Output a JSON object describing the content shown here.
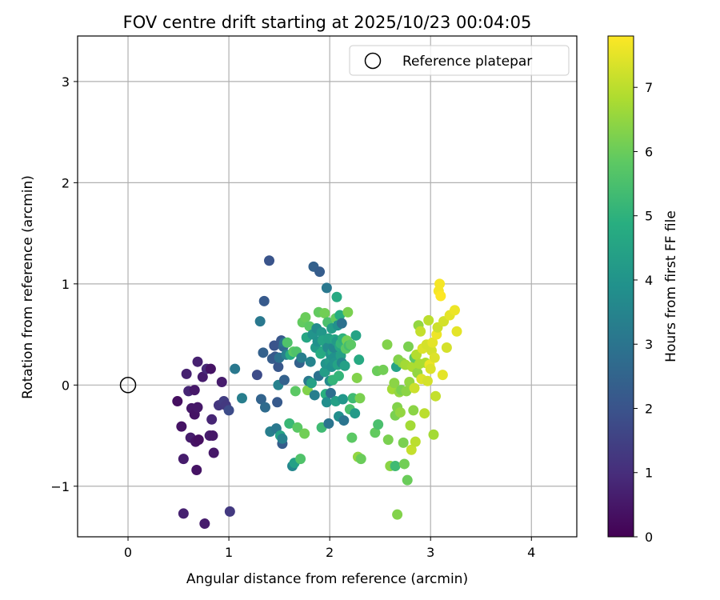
{
  "chart_data": {
    "type": "scatter",
    "title": "FOV centre drift starting at 2025/10/23 00:04:05",
    "xlabel": "Angular distance from reference (arcmin)",
    "ylabel": "Rotation from reference (arcmin)",
    "xlim": [
      -0.5,
      4.45
    ],
    "ylim": [
      -1.5,
      3.45
    ],
    "xticks": [
      0,
      1,
      2,
      3,
      4
    ],
    "yticks": [
      -1,
      0,
      1,
      2,
      3
    ],
    "xtick_labels": [
      "0",
      "1",
      "2",
      "3",
      "4"
    ],
    "ytick_labels": [
      "−1",
      "0",
      "1",
      "2",
      "3"
    ],
    "grid": true,
    "legend": {
      "placement": "top-right",
      "entries": [
        {
          "label": "Reference platepar",
          "marker": "open-circle",
          "x": 0,
          "y": 0
        }
      ]
    },
    "colorbar": {
      "label": "Hours from first FF file",
      "colormap": "viridis",
      "range": [
        0,
        7.8
      ],
      "ticks": [
        0,
        1,
        2,
        3,
        4,
        5,
        6,
        7
      ],
      "tick_labels": [
        "0",
        "1",
        "2",
        "3",
        "4",
        "5",
        "6",
        "7"
      ]
    },
    "points": [
      [
        0.49,
        -0.16,
        0.3
      ],
      [
        0.53,
        -0.41,
        0.4
      ],
      [
        0.55,
        -0.73,
        0.6
      ],
      [
        0.58,
        0.11,
        0.7
      ],
      [
        0.6,
        -0.06,
        0.8
      ],
      [
        0.62,
        -0.52,
        0.6
      ],
      [
        0.63,
        -0.23,
        0.5
      ],
      [
        0.66,
        -0.05,
        0.5
      ],
      [
        0.66,
        -0.29,
        0.4
      ],
      [
        0.67,
        -0.56,
        0.4
      ],
      [
        0.69,
        0.23,
        0.7
      ],
      [
        0.68,
        -0.84,
        0.4
      ],
      [
        0.69,
        -0.22,
        0.5
      ],
      [
        0.7,
        -0.54,
        0.3
      ],
      [
        0.74,
        0.08,
        0.6
      ],
      [
        0.78,
        0.16,
        0.9
      ],
      [
        0.81,
        -0.5,
        0.6
      ],
      [
        0.83,
        -0.34,
        0.8
      ],
      [
        0.82,
        0.16,
        0.4
      ],
      [
        0.85,
        -0.67,
        0.5
      ],
      [
        0.84,
        -0.5,
        0.5
      ],
      [
        0.9,
        -0.2,
        1.2
      ],
      [
        0.93,
        0.03,
        0.6
      ],
      [
        0.95,
        -0.16,
        1.4
      ],
      [
        0.97,
        -0.2,
        1.3
      ],
      [
        1.0,
        -0.25,
        1.8
      ],
      [
        1.06,
        0.16,
        3.1
      ],
      [
        0.55,
        -1.27,
        0.7
      ],
      [
        0.76,
        -1.37,
        0.6
      ],
      [
        1.01,
        -1.25,
        1.3
      ],
      [
        1.13,
        -0.13,
        3.3
      ],
      [
        1.28,
        0.1,
        1.8
      ],
      [
        1.31,
        0.63,
        3.1
      ],
      [
        1.32,
        -0.14,
        2.5
      ],
      [
        1.34,
        0.32,
        2.4
      ],
      [
        1.35,
        0.83,
        2.2
      ],
      [
        1.36,
        -0.22,
        2.7
      ],
      [
        1.4,
        1.23,
        2.0
      ],
      [
        1.41,
        -0.46,
        3.3
      ],
      [
        1.43,
        0.26,
        2.3
      ],
      [
        1.45,
        0.39,
        2.0
      ],
      [
        1.46,
        0.28,
        2.2
      ],
      [
        1.47,
        -0.43,
        3.1
      ],
      [
        1.48,
        -0.17,
        2.2
      ],
      [
        1.49,
        0.18,
        2.1
      ],
      [
        1.49,
        0.0,
        3.4
      ],
      [
        1.5,
        0.27,
        2.9
      ],
      [
        1.51,
        -0.5,
        4.5
      ],
      [
        1.52,
        0.44,
        2.1
      ],
      [
        1.53,
        -0.58,
        2.3
      ],
      [
        1.53,
        -0.53,
        3.4
      ],
      [
        1.54,
        0.38,
        2.6
      ],
      [
        1.55,
        0.05,
        2.4
      ],
      [
        1.55,
        0.42,
        3.0
      ],
      [
        1.57,
        0.3,
        3.4
      ],
      [
        1.58,
        0.42,
        5.6
      ],
      [
        1.6,
        -0.38,
        5.2
      ],
      [
        1.61,
        0.3,
        4.8
      ],
      [
        1.63,
        -0.8,
        3.6
      ],
      [
        1.64,
        0.33,
        5.8
      ],
      [
        1.65,
        -0.77,
        4.4
      ],
      [
        1.66,
        -0.06,
        5.8
      ],
      [
        1.67,
        0.33,
        5.6
      ],
      [
        1.68,
        -0.42,
        5.8
      ],
      [
        1.7,
        0.22,
        2.4
      ],
      [
        1.71,
        -0.73,
        5.6
      ],
      [
        1.72,
        0.27,
        3.3
      ],
      [
        1.73,
        0.62,
        5.9
      ],
      [
        1.75,
        -0.48,
        6.1
      ],
      [
        1.76,
        0.67,
        6.0
      ],
      [
        1.77,
        0.47,
        4.6
      ],
      [
        1.78,
        -0.05,
        6.3
      ],
      [
        1.79,
        0.04,
        3.1
      ],
      [
        1.8,
        0.58,
        5.8
      ],
      [
        1.81,
        0.23,
        3.5
      ],
      [
        1.82,
        0.02,
        4.4
      ],
      [
        1.83,
        0.5,
        4.0
      ],
      [
        1.84,
        1.17,
        2.4
      ],
      [
        1.85,
        -0.1,
        3.3
      ],
      [
        1.86,
        0.37,
        4.2
      ],
      [
        1.87,
        0.56,
        3.7
      ],
      [
        1.88,
        0.43,
        3.9
      ],
      [
        1.89,
        0.72,
        5.9
      ],
      [
        1.89,
        0.09,
        2.9
      ],
      [
        1.9,
        1.12,
        2.3
      ],
      [
        1.91,
        0.31,
        4.8
      ],
      [
        1.92,
        -0.42,
        5.3
      ],
      [
        1.92,
        0.52,
        4.1
      ],
      [
        1.93,
        0.44,
        4.5
      ],
      [
        1.94,
        0.34,
        4.7
      ],
      [
        1.95,
        0.13,
        4.3
      ],
      [
        1.95,
        0.71,
        6.1
      ],
      [
        1.96,
        -0.09,
        4.9
      ],
      [
        1.96,
        0.21,
        4.0
      ],
      [
        1.97,
        0.96,
        3.1
      ],
      [
        1.97,
        -0.17,
        3.8
      ],
      [
        1.98,
        0.62,
        5.5
      ],
      [
        1.98,
        0.37,
        3.7
      ],
      [
        1.99,
        -0.38,
        3.0
      ],
      [
        1.99,
        0.46,
        4.4
      ],
      [
        2.0,
        0.23,
        4.2
      ],
      [
        2.0,
        0.04,
        3.7
      ],
      [
        2.01,
        0.3,
        4.0
      ],
      [
        2.01,
        -0.08,
        2.8
      ],
      [
        2.02,
        0.56,
        4.3
      ],
      [
        2.02,
        0.18,
        3.9
      ],
      [
        2.03,
        0.33,
        4.6
      ],
      [
        2.03,
        0.05,
        5.1
      ],
      [
        2.04,
        0.27,
        3.9
      ],
      [
        2.04,
        0.37,
        3.6
      ],
      [
        2.05,
        0.45,
        4.6
      ],
      [
        2.05,
        0.22,
        4.0
      ],
      [
        2.06,
        0.66,
        5.9
      ],
      [
        2.06,
        -0.16,
        4.4
      ],
      [
        2.07,
        0.87,
        4.7
      ],
      [
        2.07,
        0.43,
        4.2
      ],
      [
        2.08,
        0.2,
        4.5
      ],
      [
        2.08,
        0.59,
        3.9
      ],
      [
        2.09,
        0.09,
        5.1
      ],
      [
        2.09,
        -0.31,
        3.8
      ],
      [
        2.1,
        0.38,
        4.6
      ],
      [
        2.1,
        0.69,
        4.8
      ],
      [
        2.11,
        0.29,
        4.4
      ],
      [
        2.11,
        0.41,
        5.1
      ],
      [
        2.12,
        0.22,
        3.6
      ],
      [
        2.12,
        0.61,
        2.9
      ],
      [
        2.13,
        -0.14,
        4.1
      ],
      [
        2.13,
        0.46,
        5.0
      ],
      [
        2.14,
        -0.35,
        3.0
      ],
      [
        2.15,
        0.19,
        4.4
      ],
      [
        2.16,
        0.36,
        5.8
      ],
      [
        2.17,
        0.44,
        6.1
      ],
      [
        2.18,
        0.72,
        6.2
      ],
      [
        2.19,
        0.39,
        5.4
      ],
      [
        2.2,
        -0.24,
        5.5
      ],
      [
        2.21,
        0.4,
        5.8
      ],
      [
        2.22,
        -0.52,
        5.8
      ],
      [
        2.23,
        -0.13,
        5.3
      ],
      [
        2.25,
        -0.28,
        4.2
      ],
      [
        2.26,
        0.49,
        4.5
      ],
      [
        2.27,
        0.07,
        6.3
      ],
      [
        2.28,
        -0.71,
        6.5
      ],
      [
        2.29,
        0.25,
        4.7
      ],
      [
        2.3,
        -0.13,
        6.2
      ],
      [
        2.31,
        -0.73,
        6.0
      ],
      [
        2.45,
        -0.47,
        5.9
      ],
      [
        2.47,
        0.14,
        6.0
      ],
      [
        2.48,
        -0.39,
        5.5
      ],
      [
        2.53,
        0.15,
        6.1
      ],
      [
        2.57,
        0.4,
        6.3
      ],
      [
        2.58,
        -0.54,
        6.2
      ],
      [
        2.6,
        -0.8,
        6.4
      ],
      [
        2.62,
        -0.04,
        6.7
      ],
      [
        2.64,
        0.02,
        6.4
      ],
      [
        2.65,
        -0.3,
        6.2
      ],
      [
        2.65,
        -0.8,
        5.3
      ],
      [
        2.66,
        0.18,
        4.5
      ],
      [
        2.67,
        -0.22,
        6.3
      ],
      [
        2.67,
        -1.28,
        6.3
      ],
      [
        2.68,
        0.25,
        6.3
      ],
      [
        2.69,
        -0.07,
        6.5
      ],
      [
        2.7,
        -0.27,
        6.5
      ],
      [
        2.71,
        -0.05,
        6.2
      ],
      [
        2.72,
        0.22,
        6.4
      ],
      [
        2.73,
        -0.57,
        6.2
      ],
      [
        2.74,
        -0.78,
        6.1
      ],
      [
        2.75,
        0.2,
        6.7
      ],
      [
        2.76,
        -0.06,
        6.4
      ],
      [
        2.77,
        -0.94,
        6.0
      ],
      [
        2.78,
        0.38,
        6.2
      ],
      [
        2.79,
        0.03,
        6.5
      ],
      [
        2.8,
        -0.4,
        6.7
      ],
      [
        2.81,
        -0.64,
        7.1
      ],
      [
        2.82,
        0.18,
        6.8
      ],
      [
        2.83,
        -0.25,
        6.4
      ],
      [
        2.84,
        0.27,
        5.8
      ],
      [
        2.84,
        -0.03,
        7.2
      ],
      [
        2.85,
        -0.56,
        7.0
      ],
      [
        2.86,
        0.3,
        6.9
      ],
      [
        2.87,
        0.12,
        6.5
      ],
      [
        2.88,
        0.59,
        6.5
      ],
      [
        2.89,
        0.21,
        6.8
      ],
      [
        2.9,
        0.53,
        7.1
      ],
      [
        2.91,
        0.06,
        7.4
      ],
      [
        2.92,
        0.36,
        7.4
      ],
      [
        2.94,
        -0.28,
        7.0
      ],
      [
        2.95,
        0.22,
        6.8
      ],
      [
        2.96,
        0.4,
        7.3
      ],
      [
        2.97,
        0.04,
        7.3
      ],
      [
        2.98,
        0.64,
        7.0
      ],
      [
        2.99,
        0.2,
        7.6
      ],
      [
        3.0,
        0.16,
        7.4
      ],
      [
        3.01,
        0.34,
        7.3
      ],
      [
        3.02,
        0.42,
        7.5
      ],
      [
        3.03,
        -0.49,
        6.7
      ],
      [
        3.04,
        0.27,
        7.4
      ],
      [
        3.05,
        -0.11,
        7.1
      ],
      [
        3.06,
        0.5,
        7.6
      ],
      [
        3.07,
        0.57,
        7.2
      ],
      [
        3.08,
        0.93,
        7.7
      ],
      [
        3.09,
        1.0,
        7.7
      ],
      [
        3.1,
        0.88,
        7.8
      ],
      [
        3.12,
        0.1,
        7.5
      ],
      [
        3.13,
        0.63,
        7.3
      ],
      [
        3.16,
        0.37,
        7.3
      ],
      [
        3.19,
        0.69,
        7.5
      ],
      [
        3.24,
        0.74,
        7.6
      ],
      [
        3.26,
        0.53,
        7.5
      ]
    ]
  }
}
